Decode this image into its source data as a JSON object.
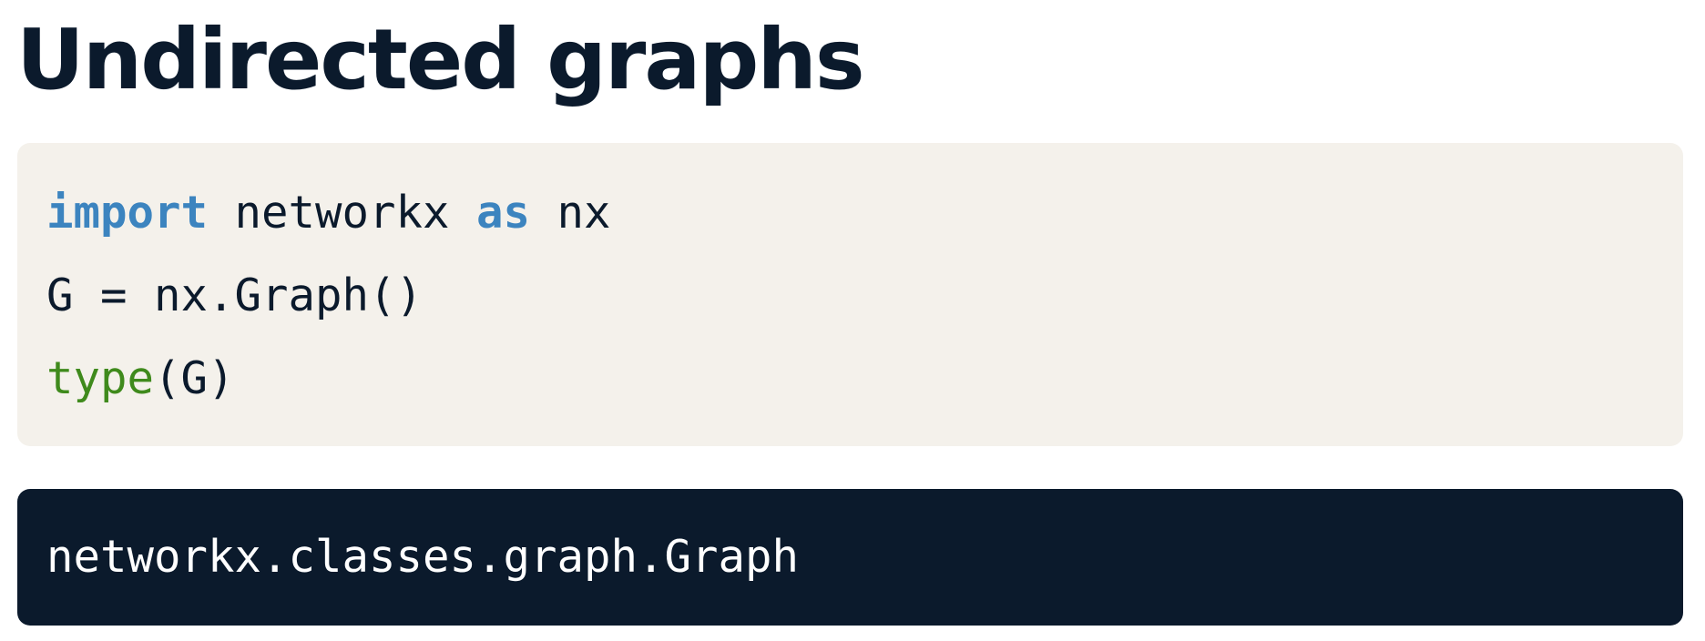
{
  "slide": {
    "title": "Undirected graphs"
  },
  "code": {
    "line1": {
      "keyword_import": "import",
      "module": " networkx ",
      "keyword_as": "as",
      "alias": " nx"
    },
    "line2": {
      "text": "G = nx.Graph()"
    },
    "line3": {
      "builtin": "type",
      "args": "(G)"
    }
  },
  "output": {
    "text": "networkx.classes.graph.Graph"
  },
  "colors": {
    "title_text": "#0b1a2c",
    "code_background": "#f4f1eb",
    "code_text": "#0b1a2c",
    "keyword": "#3c84bf",
    "builtin": "#3f8a1c",
    "output_background": "#0b1a2c",
    "output_text": "#ffffff"
  }
}
